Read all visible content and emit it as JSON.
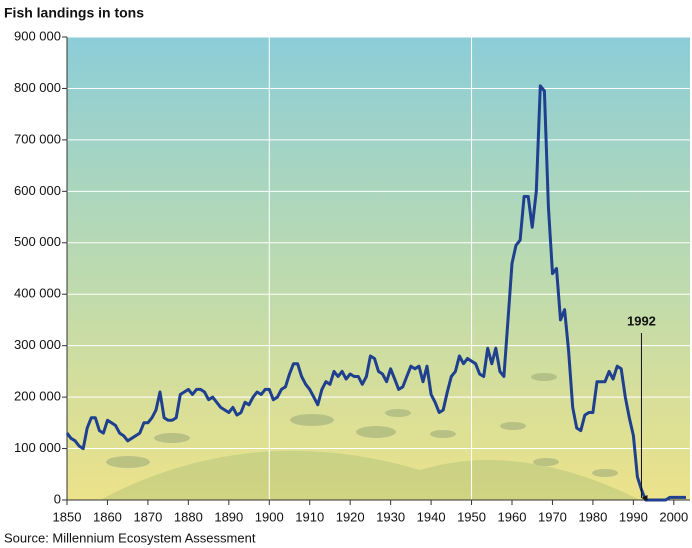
{
  "chart_data": {
    "type": "line",
    "title": "Fish landings in tons",
    "source": "Source: Millennium Ecosystem Assessment",
    "x": [
      1850,
      1851,
      1852,
      1853,
      1854,
      1855,
      1856,
      1857,
      1858,
      1859,
      1860,
      1861,
      1862,
      1863,
      1864,
      1865,
      1866,
      1867,
      1868,
      1869,
      1870,
      1871,
      1872,
      1873,
      1874,
      1875,
      1876,
      1877,
      1878,
      1879,
      1880,
      1881,
      1882,
      1883,
      1884,
      1885,
      1886,
      1887,
      1888,
      1889,
      1890,
      1891,
      1892,
      1893,
      1894,
      1895,
      1896,
      1897,
      1898,
      1899,
      1900,
      1901,
      1902,
      1903,
      1904,
      1905,
      1906,
      1907,
      1908,
      1909,
      1910,
      1911,
      1912,
      1913,
      1914,
      1915,
      1916,
      1917,
      1918,
      1919,
      1920,
      1921,
      1922,
      1923,
      1924,
      1925,
      1926,
      1927,
      1928,
      1929,
      1930,
      1931,
      1932,
      1933,
      1934,
      1935,
      1936,
      1937,
      1938,
      1939,
      1940,
      1941,
      1942,
      1943,
      1944,
      1945,
      1946,
      1947,
      1948,
      1949,
      1950,
      1951,
      1952,
      1953,
      1954,
      1955,
      1956,
      1957,
      1958,
      1959,
      1960,
      1961,
      1962,
      1963,
      1964,
      1965,
      1966,
      1967,
      1968,
      1969,
      1970,
      1971,
      1972,
      1973,
      1974,
      1975,
      1976,
      1977,
      1978,
      1979,
      1980,
      1981,
      1982,
      1983,
      1984,
      1985,
      1986,
      1987,
      1988,
      1989,
      1990,
      1991,
      1992,
      1993,
      1994,
      1995,
      1996,
      1997,
      1998,
      1999,
      2000,
      2001,
      2002,
      2003
    ],
    "values": [
      130000,
      120000,
      115000,
      105000,
      100000,
      140000,
      160000,
      160000,
      135000,
      130000,
      155000,
      150000,
      145000,
      130000,
      125000,
      115000,
      120000,
      125000,
      130000,
      150000,
      150000,
      160000,
      175000,
      210000,
      160000,
      155000,
      155000,
      160000,
      205000,
      210000,
      215000,
      205000,
      215000,
      215000,
      210000,
      195000,
      200000,
      190000,
      180000,
      175000,
      170000,
      180000,
      165000,
      170000,
      190000,
      185000,
      200000,
      210000,
      205000,
      215000,
      215000,
      195000,
      200000,
      215000,
      220000,
      245000,
      265000,
      265000,
      240000,
      225000,
      215000,
      200000,
      185000,
      215000,
      230000,
      225000,
      250000,
      240000,
      250000,
      235000,
      245000,
      240000,
      240000,
      225000,
      240000,
      280000,
      275000,
      250000,
      245000,
      230000,
      255000,
      235000,
      215000,
      220000,
      240000,
      260000,
      255000,
      260000,
      230000,
      260000,
      205000,
      190000,
      170000,
      175000,
      210000,
      240000,
      250000,
      280000,
      265000,
      275000,
      270000,
      265000,
      245000,
      240000,
      295000,
      265000,
      295000,
      250000,
      240000,
      350000,
      460000,
      495000,
      505000,
      590000,
      590000,
      530000,
      600000,
      805000,
      795000,
      570000,
      440000,
      450000,
      350000,
      370000,
      290000,
      180000,
      140000,
      135000,
      165000,
      170000,
      170000,
      230000,
      230000,
      230000,
      250000,
      235000,
      260000,
      255000,
      200000,
      160000,
      125000,
      45000,
      20000,
      0,
      0,
      0,
      0,
      0,
      0,
      5000,
      5000,
      5000,
      5000,
      5000
    ],
    "color": "#1f3f8f",
    "xlim": [
      1850,
      2004
    ],
    "xticks": [
      1850,
      1860,
      1870,
      1880,
      1890,
      1900,
      1910,
      1920,
      1930,
      1940,
      1950,
      1960,
      1970,
      1980,
      1990,
      2000
    ],
    "xgrid": [
      1900,
      1950
    ],
    "ylim": [
      0,
      900000
    ],
    "yticks": [
      {
        "value": 0,
        "label": "0"
      },
      {
        "value": 100000,
        "label": "100 000"
      },
      {
        "value": 200000,
        "label": "200 000"
      },
      {
        "value": 300000,
        "label": "300 000"
      },
      {
        "value": 400000,
        "label": "400 000"
      },
      {
        "value": 500000,
        "label": "500 000"
      },
      {
        "value": 600000,
        "label": "600 000"
      },
      {
        "value": 700000,
        "label": "700 000"
      },
      {
        "value": 800000,
        "label": "800 000"
      },
      {
        "value": 900000,
        "label": "900 000"
      }
    ],
    "grid": true,
    "annotation": {
      "text": "1992",
      "x": 1992
    }
  }
}
